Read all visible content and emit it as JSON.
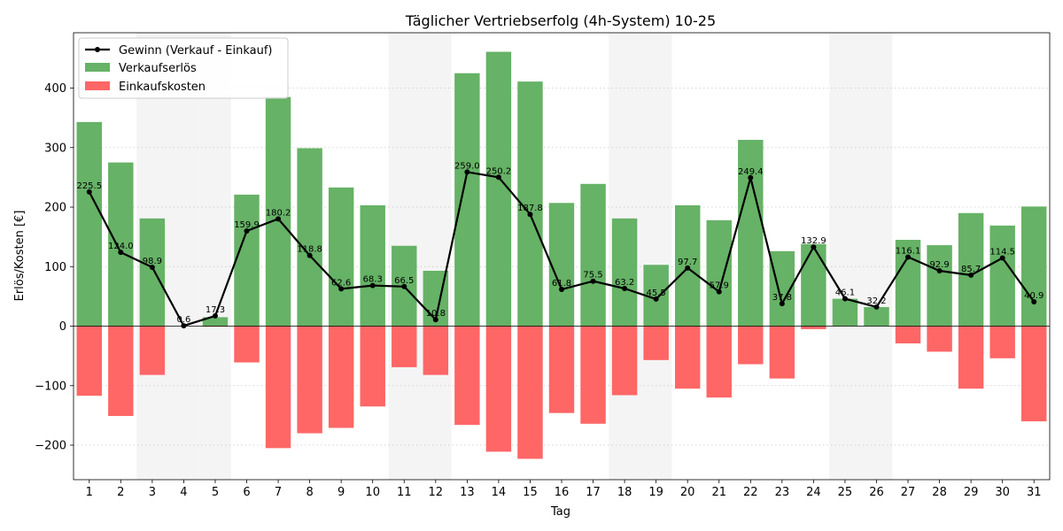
{
  "chart_data": {
    "type": "bar",
    "title": "Täglicher Vertriebserfolg (4h-System) 10-25",
    "xlabel": "Tag",
    "ylabel": "Erlös/Kosten [€]",
    "categories": [
      "1",
      "2",
      "3",
      "4",
      "5",
      "6",
      "7",
      "8",
      "9",
      "10",
      "11",
      "12",
      "13",
      "14",
      "15",
      "16",
      "17",
      "18",
      "19",
      "20",
      "21",
      "22",
      "23",
      "24",
      "25",
      "26",
      "27",
      "28",
      "29",
      "30",
      "31"
    ],
    "series": [
      {
        "name": "Verkaufserlös",
        "kind": "bar",
        "color": "#66b266",
        "values": [
          343,
          275,
          181,
          0,
          15,
          221,
          385,
          299,
          233,
          203,
          135,
          93,
          425,
          461,
          411,
          207,
          239,
          181,
          103,
          203,
          178,
          313,
          126,
          138,
          46,
          32,
          145,
          136,
          190,
          169,
          201
        ]
      },
      {
        "name": "Einkaufskosten",
        "kind": "bar",
        "color": "#ff6666",
        "values": [
          -117,
          -151,
          -82,
          0,
          -1,
          -61,
          -205,
          -180,
          -171,
          -135,
          -69,
          -82,
          -166,
          -211,
          -223,
          -146,
          -164,
          -116,
          -57,
          -105,
          -120,
          -64,
          -88,
          -5,
          0,
          0,
          -29,
          -43,
          -105,
          -54,
          -160
        ]
      },
      {
        "name": "Gewinn (Verkauf - Einkauf)",
        "kind": "line",
        "color": "#000000",
        "values": [
          225.5,
          124.0,
          98.9,
          0.6,
          17.3,
          159.9,
          180.2,
          118.8,
          62.6,
          68.3,
          66.5,
          10.8,
          259.0,
          250.2,
          187.8,
          61.8,
          75.5,
          63.2,
          45.5,
          97.7,
          57.9,
          249.4,
          37.8,
          132.9,
          46.1,
          32.2,
          116.1,
          92.9,
          85.7,
          114.5,
          40.9
        ],
        "labels": [
          "225.5",
          "124.0",
          "98.9",
          "0.6",
          "17.3",
          "159.9",
          "180.2",
          "118.8",
          "62.6",
          "68.3",
          "66.5",
          "10.8",
          "259.0",
          "250.2",
          "187.8",
          "61.8",
          "75.5",
          "63.2",
          "45.5",
          "97.7",
          "57.9",
          "249.4",
          "37.8",
          "132.9",
          "46.1",
          "32.2",
          "116.1",
          "92.9",
          "85.7",
          "114.5",
          "40.9"
        ]
      }
    ],
    "shaded_days": [
      "3",
      "4",
      "5",
      "11",
      "12",
      "18",
      "19",
      "25",
      "26"
    ],
    "shade_color": "#e6e6e6",
    "yticks": [
      -200,
      -100,
      0,
      100,
      200,
      300,
      400
    ],
    "ytick_labels": [
      "−200",
      "−100",
      "0",
      "100",
      "200",
      "300",
      "400"
    ],
    "ylim": [
      -258,
      493
    ],
    "grid": true,
    "legend_position": "top-left"
  }
}
